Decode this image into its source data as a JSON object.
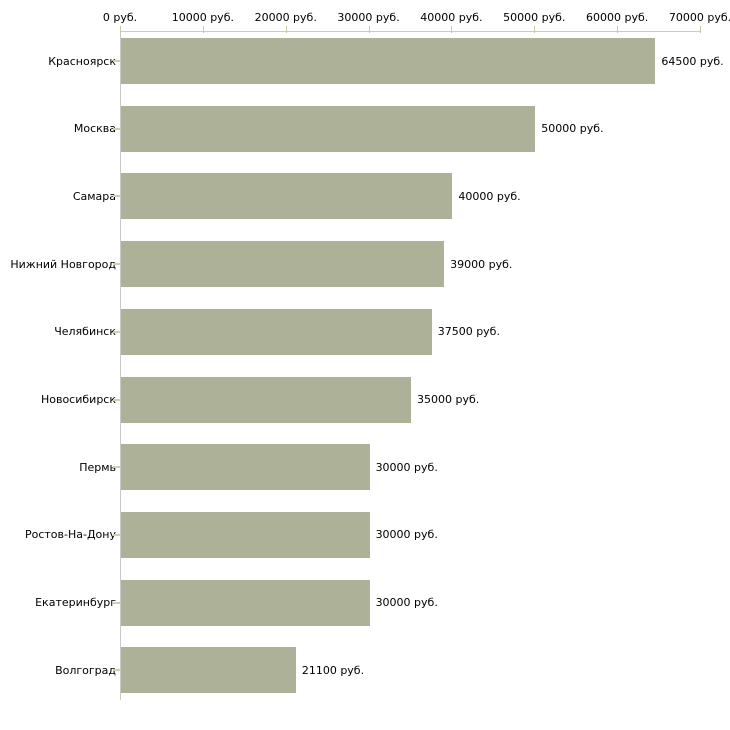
{
  "chart_data": {
    "type": "bar",
    "orientation": "horizontal",
    "title": "",
    "xlabel": "",
    "ylabel": "",
    "unit": "руб.",
    "categories": [
      "Красноярск",
      "Москва",
      "Самара",
      "Нижний Новгород",
      "Челябинск",
      "Новосибирск",
      "Пермь",
      "Ростов-На-Дону",
      "Екатеринбург",
      "Волгоград"
    ],
    "values": [
      64500,
      50000,
      40000,
      39000,
      37500,
      35000,
      30000,
      30000,
      30000,
      21100
    ],
    "value_labels": [
      "64500 руб.",
      "50000 руб.",
      "40000 руб.",
      "39000 руб.",
      "37500 руб.",
      "35000 руб.",
      "30000 руб.",
      "30000 руб.",
      "30000 руб.",
      "21100 руб."
    ],
    "xlim": [
      0,
      70000
    ],
    "x_ticks": [
      0,
      10000,
      20000,
      30000,
      40000,
      50000,
      60000,
      70000
    ],
    "x_tick_labels": [
      "0 руб.",
      "10000 руб.",
      "20000 руб.",
      "30000 руб.",
      "40000 руб.",
      "50000 руб.",
      "60000 руб.",
      "70000 руб."
    ],
    "axis_position": "top",
    "grid": false,
    "legend": false
  },
  "colors": {
    "bar": "#acb198",
    "axis_line": "#c9c9c9",
    "x_tick_mark": "#c4cb9c",
    "y_tick_mark": "#ccd2ab",
    "text": "#000000",
    "background": "#ffffff"
  }
}
